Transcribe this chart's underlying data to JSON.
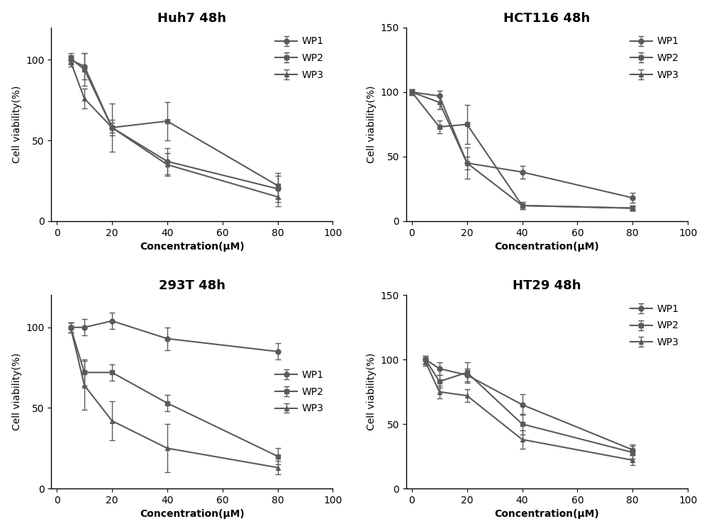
{
  "panels": [
    {
      "title": "Huh7 48h",
      "xlim": [
        -2,
        100
      ],
      "ylim": [
        0,
        120
      ],
      "yticks": [
        0,
        50,
        100
      ],
      "xticks": [
        0,
        20,
        40,
        60,
        80,
        100
      ],
      "legend_loc": "upper right",
      "legend_bbox": null,
      "series": [
        {
          "label": "WP1",
          "marker": "o",
          "x": [
            5,
            10,
            20,
            40,
            80
          ],
          "y": [
            100,
            96,
            58,
            37,
            20
          ],
          "yerr": [
            3,
            8,
            5,
            8,
            8
          ]
        },
        {
          "label": "WP2",
          "marker": "s",
          "x": [
            5,
            10,
            20,
            40,
            80
          ],
          "y": [
            101,
            94,
            58,
            62,
            22
          ],
          "yerr": [
            3,
            10,
            15,
            12,
            8
          ]
        },
        {
          "label": "WP3",
          "marker": "^",
          "x": [
            5,
            10,
            20,
            40,
            80
          ],
          "y": [
            99,
            76,
            58,
            35,
            15
          ],
          "yerr": [
            3,
            6,
            3,
            7,
            6
          ]
        }
      ]
    },
    {
      "title": "HCT116 48h",
      "xlim": [
        -2,
        100
      ],
      "ylim": [
        0,
        150
      ],
      "yticks": [
        0,
        50,
        100,
        150
      ],
      "xticks": [
        0,
        20,
        40,
        60,
        80,
        100
      ],
      "legend_loc": "upper right",
      "legend_bbox": null,
      "series": [
        {
          "label": "WP1",
          "marker": "o",
          "x": [
            0,
            10,
            20,
            40,
            80
          ],
          "y": [
            100,
            97,
            45,
            38,
            18
          ],
          "yerr": [
            2,
            4,
            5,
            5,
            4
          ]
        },
        {
          "label": "WP2",
          "marker": "s",
          "x": [
            0,
            10,
            20,
            40,
            80
          ],
          "y": [
            100,
            73,
            75,
            12,
            10
          ],
          "yerr": [
            2,
            5,
            15,
            3,
            2
          ]
        },
        {
          "label": "WP3",
          "marker": "^",
          "x": [
            0,
            10,
            20,
            40,
            80
          ],
          "y": [
            100,
            92,
            45,
            12,
            10
          ],
          "yerr": [
            2,
            5,
            12,
            3,
            2
          ]
        }
      ]
    },
    {
      "title": "293T 48h",
      "xlim": [
        -2,
        100
      ],
      "ylim": [
        0,
        120
      ],
      "yticks": [
        0,
        50,
        100
      ],
      "xticks": [
        0,
        20,
        40,
        60,
        80,
        100
      ],
      "legend_loc": "center right",
      "legend_bbox": null,
      "series": [
        {
          "label": "WP1",
          "marker": "o",
          "x": [
            5,
            10,
            20,
            40,
            80
          ],
          "y": [
            100,
            100,
            104,
            93,
            85
          ],
          "yerr": [
            3,
            5,
            5,
            7,
            5
          ]
        },
        {
          "label": "WP2",
          "marker": "s",
          "x": [
            5,
            10,
            20,
            40,
            80
          ],
          "y": [
            100,
            72,
            72,
            53,
            20
          ],
          "yerr": [
            3,
            8,
            5,
            5,
            5
          ]
        },
        {
          "label": "WP3",
          "marker": "^",
          "x": [
            5,
            10,
            20,
            40,
            80
          ],
          "y": [
            100,
            64,
            42,
            25,
            13
          ],
          "yerr": [
            3,
            15,
            12,
            15,
            4
          ]
        }
      ]
    },
    {
      "title": "HT29 48h",
      "xlim": [
        -2,
        100
      ],
      "ylim": [
        0,
        150
      ],
      "yticks": [
        0,
        50,
        100,
        150
      ],
      "xticks": [
        0,
        20,
        40,
        60,
        80,
        100
      ],
      "legend_loc": "upper right",
      "legend_bbox": null,
      "series": [
        {
          "label": "WP1",
          "marker": "o",
          "x": [
            5,
            10,
            20,
            40,
            80
          ],
          "y": [
            100,
            93,
            88,
            65,
            30
          ],
          "yerr": [
            3,
            5,
            5,
            8,
            4
          ]
        },
        {
          "label": "WP2",
          "marker": "s",
          "x": [
            5,
            10,
            20,
            40,
            80
          ],
          "y": [
            100,
            83,
            90,
            50,
            28
          ],
          "yerr": [
            3,
            5,
            8,
            8,
            5
          ]
        },
        {
          "label": "WP3",
          "marker": "^",
          "x": [
            5,
            10,
            20,
            40,
            80
          ],
          "y": [
            98,
            75,
            72,
            38,
            22
          ],
          "yerr": [
            3,
            5,
            5,
            7,
            4
          ]
        }
      ]
    }
  ],
  "color": "#5a5a5a",
  "linewidth": 1.5,
  "markersize": 5,
  "capsize": 3,
  "xlabel": "Concentration(μM)",
  "ylabel": "Cell viability(%)",
  "title_fontsize": 13,
  "label_fontsize": 10,
  "tick_fontsize": 10,
  "legend_fontsize": 10,
  "background_color": "#ffffff"
}
